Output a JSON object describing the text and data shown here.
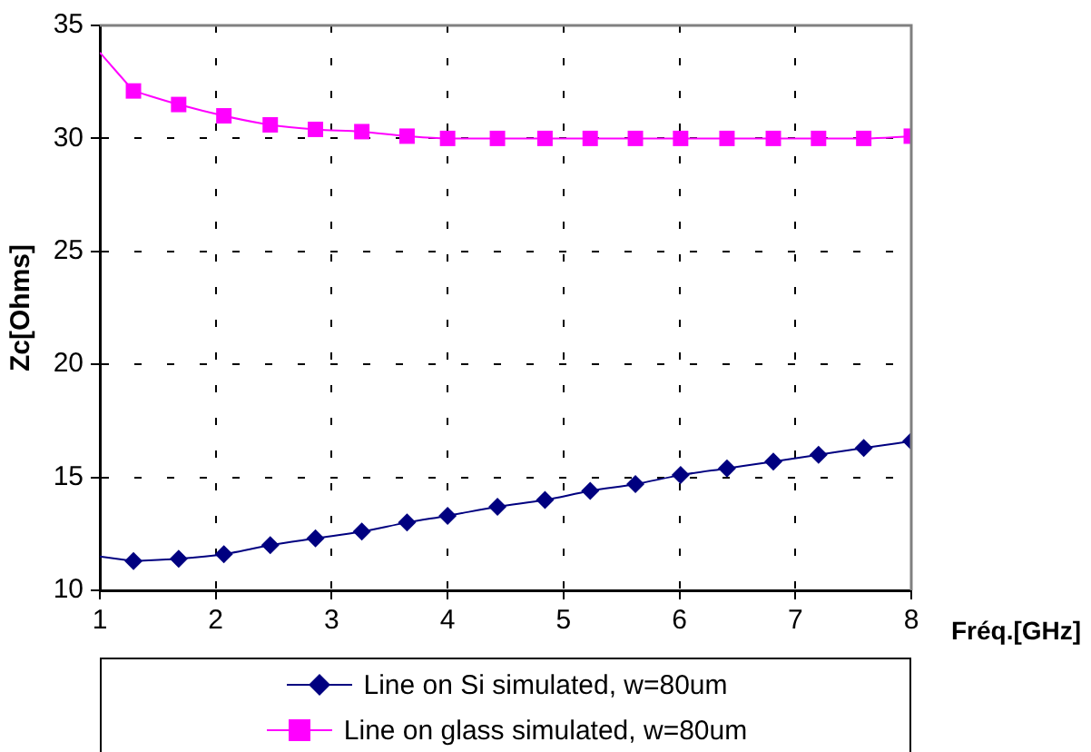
{
  "chart_data": {
    "type": "line",
    "xlabel": "Fréq.[GHz]",
    "ylabel": "Zc[Ohms]",
    "xlim": [
      1,
      8
    ],
    "xticks": [
      1,
      2,
      3,
      4,
      5,
      6,
      7,
      8
    ],
    "ylim": [
      10,
      35
    ],
    "yticks": [
      10,
      15,
      20,
      25,
      30,
      35
    ],
    "grid": true,
    "legend": "bottom",
    "line_style": "solid",
    "series": [
      {
        "name": "Line on Si simulated, w=80um",
        "color": "#000080",
        "marker": "diamond",
        "x": [
          1.29,
          1.68,
          2.07,
          2.47,
          2.86,
          3.26,
          3.65,
          4.0,
          4.43,
          4.84,
          5.23,
          5.62,
          6.01,
          6.41,
          6.81,
          7.2,
          7.59,
          8.0
        ],
        "values": [
          11.3,
          11.4,
          11.6,
          12.0,
          12.3,
          12.6,
          13.0,
          13.3,
          13.7,
          14.0,
          14.4,
          14.7,
          15.1,
          15.4,
          15.7,
          16.0,
          16.3,
          16.6
        ]
      },
      {
        "name": "Line on glass simulated, w=80um",
        "color": "#ff00ff",
        "marker": "square",
        "x": [
          1.29,
          1.68,
          2.07,
          2.47,
          2.86,
          3.26,
          3.65,
          4.0,
          4.43,
          4.84,
          5.23,
          5.62,
          6.01,
          6.41,
          6.81,
          7.2,
          7.59,
          8.0
        ],
        "values": [
          32.1,
          31.5,
          31.0,
          30.6,
          30.4,
          30.3,
          30.1,
          30.0,
          30.0,
          30.0,
          30.0,
          30.0,
          30.0,
          30.0,
          30.0,
          30.0,
          30.0,
          30.1
        ]
      },
      {
        "type": "line",
        "color": "#000080",
        "marker": "none",
        "x": [
          1,
          1.29
        ],
        "values": [
          11.5,
          11.3
        ]
      },
      {
        "type": "line",
        "color": "#ff00ff",
        "marker": "none",
        "x": [
          1,
          1.29
        ],
        "values": [
          33.8,
          32.1
        ]
      }
    ]
  }
}
